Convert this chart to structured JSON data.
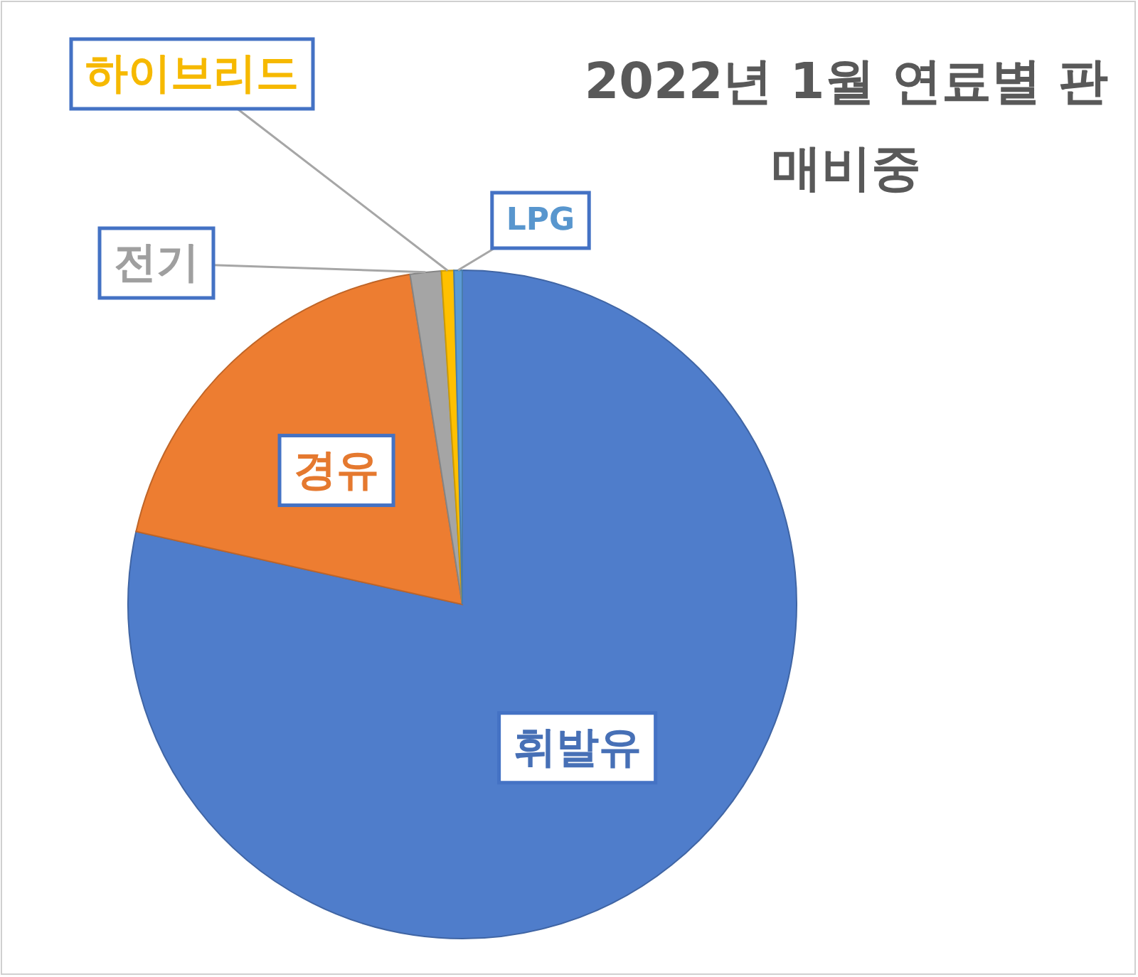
{
  "chart_data": {
    "type": "pie",
    "title": "2022년 1월 연료별 판매비중",
    "categories": [
      "휘발유",
      "경유",
      "전기",
      "하이브리드",
      "LPG"
    ],
    "values": [
      78.5,
      19.0,
      1.5,
      0.6,
      0.4
    ],
    "colors": [
      "#4f7dcb",
      "#ed7d31",
      "#a5a5a5",
      "#ffc000",
      "#5b9bd5"
    ]
  }
}
